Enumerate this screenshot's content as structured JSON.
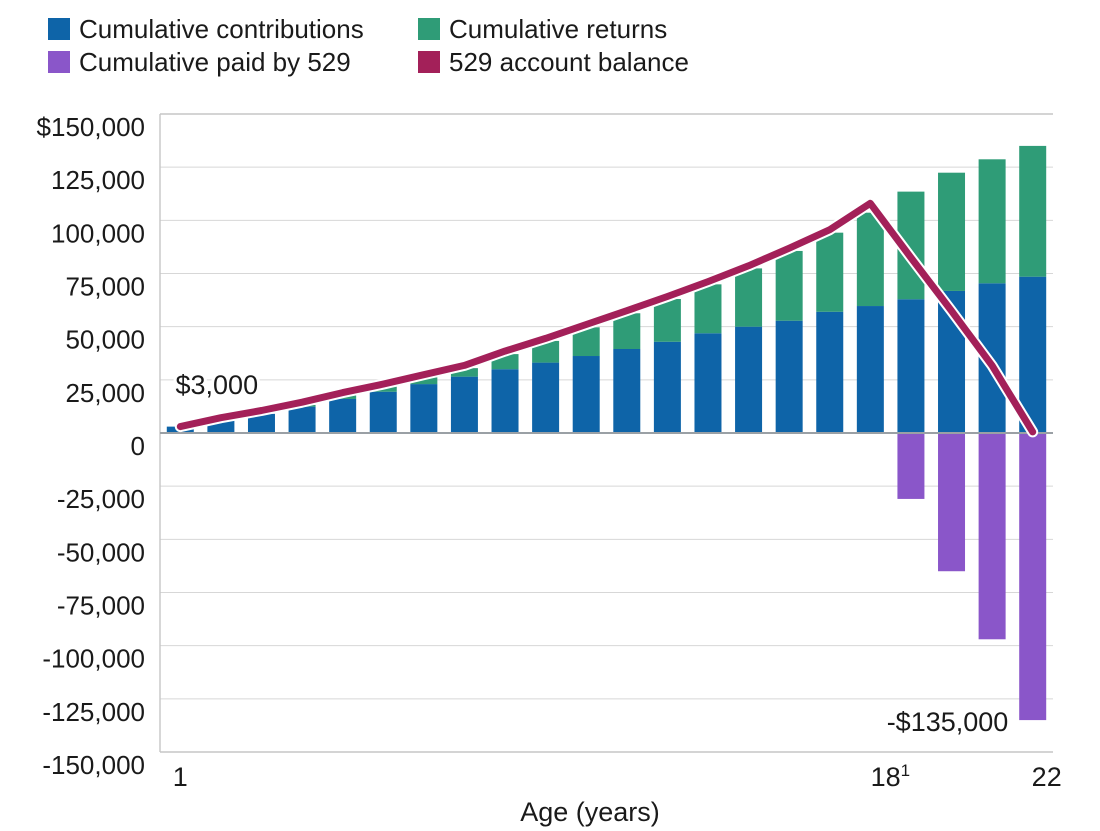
{
  "legend": [
    {
      "label": "Cumulative contributions",
      "color": "#0e64a8"
    },
    {
      "label": "Cumulative returns",
      "color": "#2f9c77"
    },
    {
      "label": "Cumulative paid by 529",
      "color": "#8a56c9"
    },
    {
      "label": "529 account balance",
      "color": "#a32059"
    }
  ],
  "chart_data": {
    "type": "bar",
    "stacked": true,
    "title": "",
    "xlabel": "Age (years)",
    "ylabel": "",
    "ylim": [
      -150000,
      150000
    ],
    "ytick_step": 25000,
    "grid": true,
    "legend_position": "top-left",
    "x": [
      1,
      2,
      3,
      4,
      5,
      6,
      7,
      8,
      9,
      10,
      11,
      12,
      13,
      14,
      15,
      16,
      17,
      18,
      19,
      20,
      21,
      22
    ],
    "xticks": [
      {
        "age": 1,
        "label": "1",
        "sup": "",
        "dx": 0
      },
      {
        "age": 18,
        "label": "18",
        "sup": "1",
        "dx": 20
      },
      {
        "age": 22,
        "label": "22",
        "sup": "",
        "dx": 14
      }
    ],
    "ytick_labels": [
      "$150,000",
      "125,000",
      "100,000",
      "75,000",
      "50,000",
      "25,000",
      "0",
      "-25,000",
      "-50,000",
      "-75,000",
      "-100,000",
      "-125,000",
      "-150,000"
    ],
    "series": [
      {
        "name": "Cumulative contributions",
        "type": "bar",
        "color": "#0e64a8",
        "values": [
          3000,
          6000,
          9000,
          12400,
          16000,
          19400,
          23000,
          26500,
          30000,
          33100,
          36200,
          39500,
          42900,
          46900,
          50000,
          52800,
          57000,
          59700,
          62900,
          66800,
          70400,
          73500
        ]
      },
      {
        "name": "Cumulative returns",
        "type": "bar",
        "color": "#2f9c77",
        "values": [
          0,
          0,
          0,
          800,
          1800,
          2400,
          3200,
          4000,
          7100,
          10200,
          13500,
          16800,
          20100,
          23000,
          27400,
          32800,
          37200,
          43900,
          50600,
          55600,
          58300,
          61500
        ]
      },
      {
        "name": "Cumulative paid by 529",
        "type": "bar",
        "color": "#8a56c9",
        "values": [
          0,
          0,
          0,
          0,
          0,
          0,
          0,
          0,
          0,
          0,
          0,
          0,
          0,
          0,
          0,
          0,
          0,
          0,
          -31000,
          -65000,
          -97000,
          -135000
        ]
      },
      {
        "name": "529 account balance",
        "type": "line",
        "color": "#a32059",
        "values": [
          3000,
          7200,
          10600,
          14500,
          19000,
          23000,
          27400,
          31800,
          38500,
          44500,
          51000,
          57500,
          64200,
          71200,
          78600,
          86900,
          95600,
          108000,
          82500,
          57400,
          31700,
          500
        ]
      }
    ],
    "annotations": [
      {
        "text": "$3,000",
        "age": 1.9,
        "value": 22500
      },
      {
        "text": "-$135,000",
        "age": 19.9,
        "value": -135800
      }
    ]
  }
}
